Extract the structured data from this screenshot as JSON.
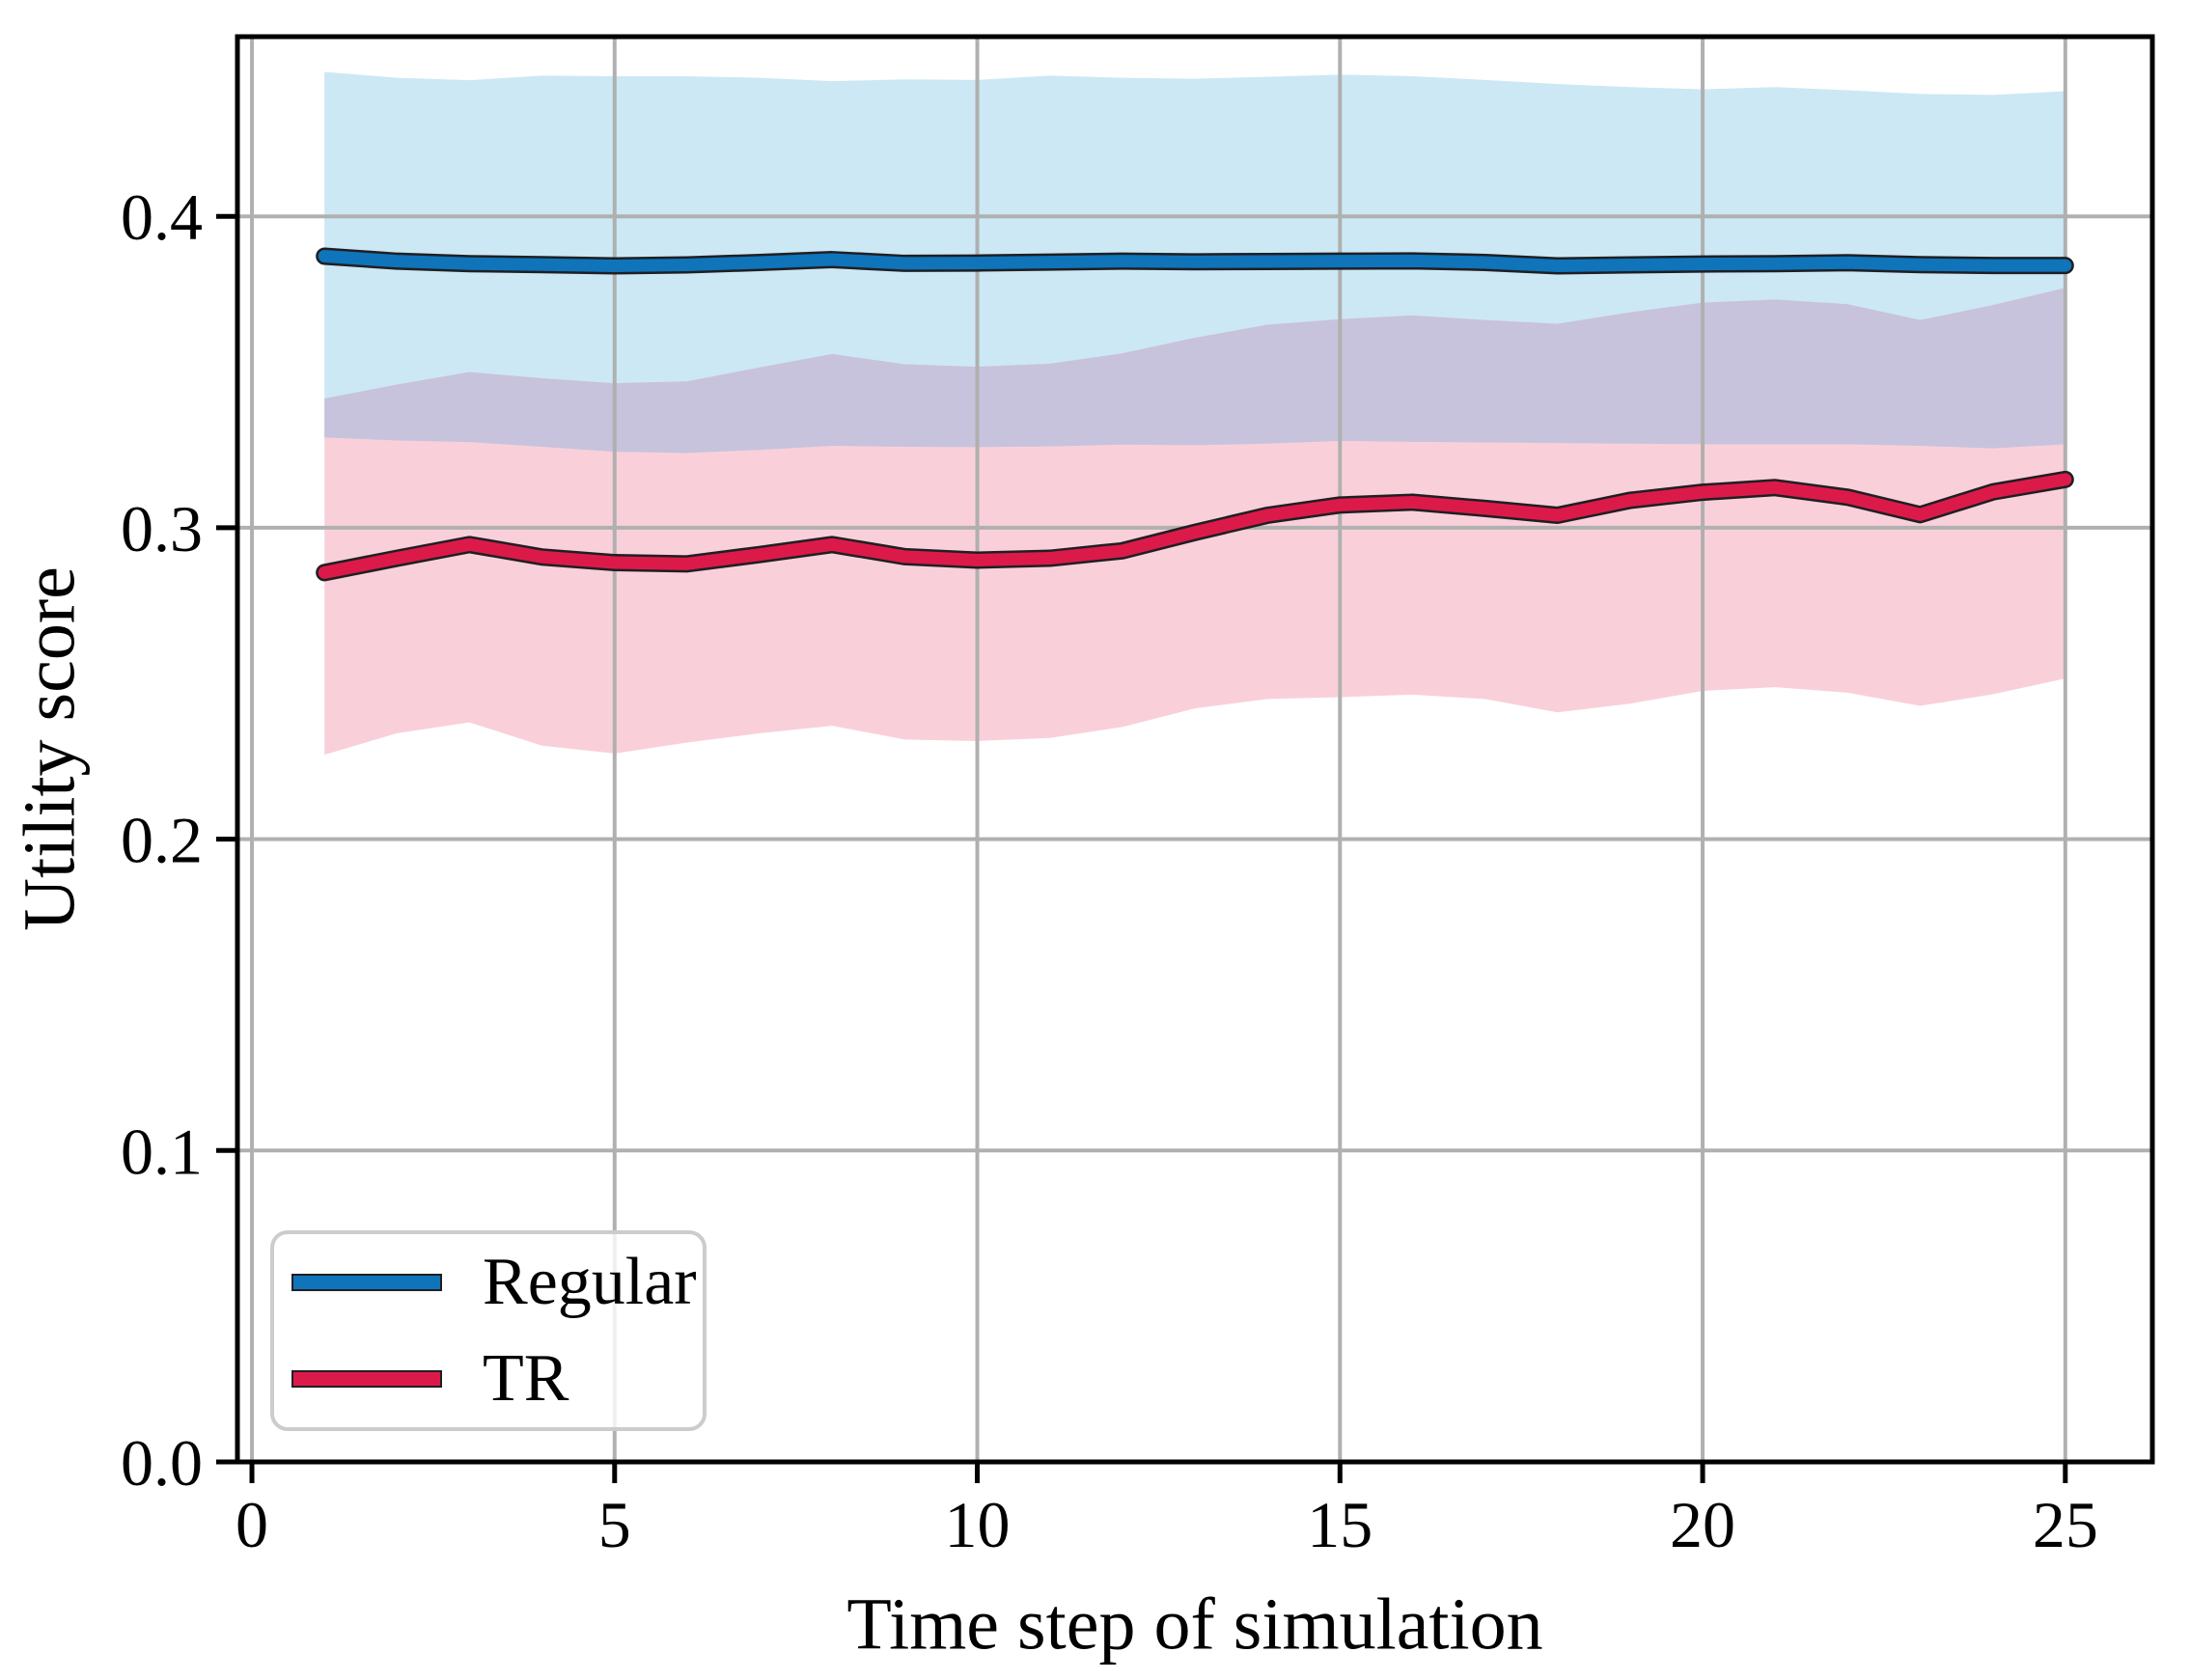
{
  "chart_data": {
    "type": "line",
    "title": "",
    "xlabel": "Time step of simulation",
    "ylabel": "Utility score",
    "xlim": [
      -0.2,
      26.2
    ],
    "ylim": [
      0,
      0.4577
    ],
    "xticks": [
      0,
      5,
      10,
      15,
      20,
      25
    ],
    "yticks": [
      0.0,
      0.1,
      0.2,
      0.3,
      0.4
    ],
    "grid": true,
    "grid_color": "#b0b0b0",
    "spine_color": "#000000",
    "line_outline_color": "#1f1f23",
    "band_overlap_color": "#c7c3dc",
    "legend_position": "lower left",
    "x": [
      1,
      2,
      3,
      4,
      5,
      6,
      7,
      8,
      9,
      10,
      11,
      12,
      13,
      14,
      15,
      16,
      17,
      18,
      19,
      20,
      21,
      22,
      23,
      24,
      25
    ],
    "series": [
      {
        "name": "Regular",
        "color": "#0f74ba",
        "band_color": "#cce8f4",
        "values": [
          0.3872,
          0.3856,
          0.3848,
          0.3845,
          0.3841,
          0.3844,
          0.3852,
          0.3861,
          0.3849,
          0.385,
          0.3853,
          0.3856,
          0.3854,
          0.3855,
          0.3856,
          0.3857,
          0.3852,
          0.3841,
          0.3844,
          0.3847,
          0.3848,
          0.3851,
          0.3845,
          0.3842,
          0.3842
        ],
        "band_upper": [
          0.4464,
          0.4445,
          0.4437,
          0.4452,
          0.445,
          0.445,
          0.4445,
          0.4434,
          0.444,
          0.4438,
          0.4452,
          0.4445,
          0.4442,
          0.4448,
          0.4455,
          0.445,
          0.4438,
          0.4425,
          0.4415,
          0.4408,
          0.4415,
          0.4405,
          0.4393,
          0.439,
          0.4402
        ],
        "band_lower": [
          0.329,
          0.328,
          0.3275,
          0.326,
          0.3244,
          0.324,
          0.325,
          0.3263,
          0.326,
          0.3259,
          0.3261,
          0.3267,
          0.3265,
          0.327,
          0.3279,
          0.3276,
          0.3274,
          0.3272,
          0.327,
          0.3268,
          0.3268,
          0.3268,
          0.3263,
          0.3255,
          0.3268
        ]
      },
      {
        "name": "TR",
        "color": "#dc1a49",
        "band_color": "#f9d0da",
        "values": [
          0.2856,
          0.2902,
          0.2946,
          0.2906,
          0.2888,
          0.2884,
          0.2914,
          0.2946,
          0.2907,
          0.2896,
          0.2902,
          0.2926,
          0.2985,
          0.304,
          0.3073,
          0.3082,
          0.3062,
          0.304,
          0.3088,
          0.3114,
          0.3129,
          0.3098,
          0.3042,
          0.3115,
          0.3155
        ],
        "band_upper": [
          0.3415,
          0.346,
          0.35,
          0.348,
          0.3464,
          0.347,
          0.3515,
          0.3558,
          0.3525,
          0.3517,
          0.3527,
          0.356,
          0.361,
          0.3652,
          0.367,
          0.3682,
          0.3667,
          0.3655,
          0.3692,
          0.3723,
          0.3733,
          0.3718,
          0.3667,
          0.3715,
          0.377
        ],
        "band_lower": [
          0.2271,
          0.234,
          0.2375,
          0.23,
          0.2275,
          0.231,
          0.234,
          0.2364,
          0.232,
          0.2315,
          0.2325,
          0.236,
          0.242,
          0.245,
          0.2456,
          0.2464,
          0.245,
          0.2407,
          0.2435,
          0.2476,
          0.2488,
          0.247,
          0.2428,
          0.2465,
          0.2516
        ]
      }
    ]
  },
  "legend": {
    "items": [
      {
        "label": "Regular"
      },
      {
        "label": "TR"
      }
    ]
  }
}
